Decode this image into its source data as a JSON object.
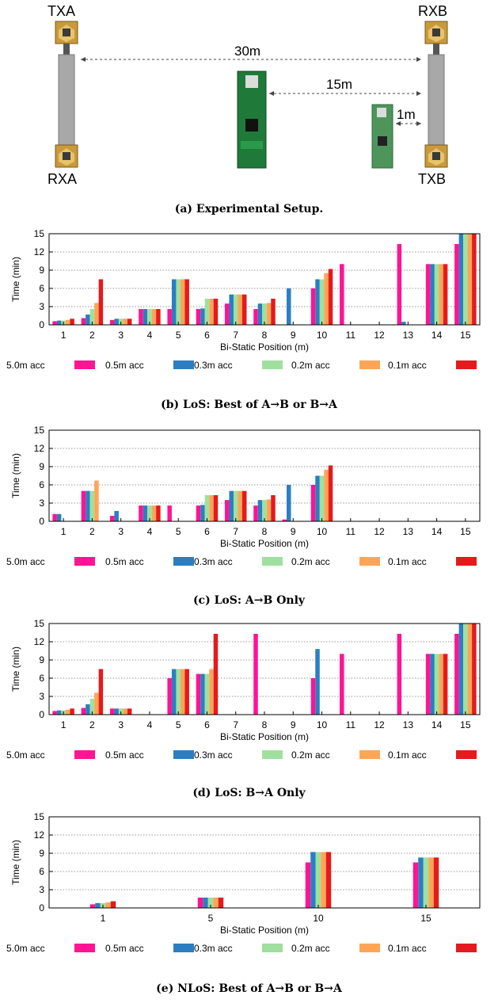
{
  "setup": {
    "labels": {
      "txa": "TXA",
      "rxa": "RXA",
      "rxb": "RXB",
      "txb": "TXB"
    },
    "distances": {
      "d30": "30m",
      "d15": "15m",
      "d1": "1m"
    },
    "caption": "(a) Experimental Setup."
  },
  "legend": {
    "entries": [
      "5.0m acc",
      "0.5m acc",
      "0.3m acc",
      "0.2m acc",
      "0.1m acc"
    ],
    "colors": [
      "#ff1493",
      "#2b7ec1",
      "#9fe09f",
      "#ffa556",
      "#e41a1c"
    ]
  },
  "chart_data": [
    {
      "type": "bar",
      "caption": "(b) LoS: Best of A→B or B→A",
      "categories": [
        "1",
        "2",
        "3",
        "4",
        "5",
        "6",
        "7",
        "8",
        "9",
        "10",
        "11",
        "12",
        "13",
        "14",
        "15"
      ],
      "xlabel": "Bi-Static Position (m)",
      "ylabel": "Time (min)",
      "ylim": [
        0,
        15
      ],
      "yticks": [
        0,
        3,
        6,
        9,
        12,
        15
      ],
      "series": [
        {
          "name": "5.0m acc",
          "values": [
            0.6,
            1.1,
            0.8,
            2.6,
            2.6,
            2.6,
            3.5,
            2.6,
            0,
            6.0,
            10.0,
            0,
            13.3,
            10.0,
            13.3
          ]
        },
        {
          "name": "0.5m acc",
          "values": [
            0.7,
            1.7,
            1.0,
            2.6,
            7.5,
            2.7,
            5.0,
            3.5,
            6.0,
            7.5,
            0,
            0,
            0.5,
            10.0,
            15.0
          ]
        },
        {
          "name": "0.3m acc",
          "values": [
            0.7,
            2.6,
            1.0,
            2.6,
            7.5,
            4.3,
            5.0,
            3.5,
            0,
            7.5,
            0,
            0,
            0,
            10.0,
            15.0
          ]
        },
        {
          "name": "0.2m acc",
          "values": [
            0.8,
            3.6,
            1.0,
            2.6,
            7.5,
            4.3,
            5.0,
            3.6,
            0,
            8.5,
            0,
            0,
            0,
            10.0,
            15.0
          ]
        },
        {
          "name": "0.1m acc",
          "values": [
            1.0,
            7.5,
            1.0,
            2.6,
            7.5,
            4.3,
            5.0,
            4.3,
            0,
            9.2,
            0,
            0,
            0,
            10.0,
            15.0
          ]
        }
      ],
      "grid": true,
      "legend": "bottom"
    },
    {
      "type": "bar",
      "caption": "(c) LoS: A→B Only",
      "categories": [
        "1",
        "2",
        "3",
        "4",
        "5",
        "6",
        "7",
        "8",
        "9",
        "10",
        "11",
        "12",
        "13",
        "14",
        "15"
      ],
      "xlabel": "Bi-Static Position (m)",
      "ylabel": "Time (min)",
      "ylim": [
        0,
        15
      ],
      "yticks": [
        0,
        3,
        6,
        9,
        12,
        15
      ],
      "series": [
        {
          "name": "5.0m acc",
          "values": [
            1.2,
            5.0,
            0.9,
            2.6,
            2.6,
            2.6,
            3.5,
            2.6,
            0.3,
            6.0,
            0,
            0,
            0,
            0,
            0
          ]
        },
        {
          "name": "0.5m acc",
          "values": [
            1.2,
            5.0,
            1.7,
            2.6,
            0,
            2.7,
            5.0,
            3.5,
            6.0,
            7.5,
            0,
            0,
            0,
            0,
            0
          ]
        },
        {
          "name": "0.3m acc",
          "values": [
            0,
            5.0,
            0,
            2.6,
            0,
            4.3,
            5.0,
            3.5,
            0,
            7.5,
            0,
            0,
            0,
            0,
            0
          ]
        },
        {
          "name": "0.2m acc",
          "values": [
            0,
            6.7,
            0,
            2.6,
            0,
            4.3,
            5.0,
            3.6,
            0,
            8.5,
            0,
            0,
            0,
            0,
            0
          ]
        },
        {
          "name": "0.1m acc",
          "values": [
            0,
            0,
            0,
            2.6,
            0,
            4.3,
            5.0,
            4.3,
            0,
            9.2,
            0,
            0,
            0,
            0,
            0
          ]
        }
      ],
      "grid": true,
      "legend": "bottom"
    },
    {
      "type": "bar",
      "caption": "(d) LoS: B→A Only",
      "categories": [
        "1",
        "2",
        "3",
        "4",
        "5",
        "6",
        "7",
        "8",
        "9",
        "10",
        "11",
        "12",
        "13",
        "14",
        "15"
      ],
      "xlabel": "Bi-Static Position (m)",
      "ylabel": "Time (min)",
      "ylim": [
        0,
        15
      ],
      "yticks": [
        0,
        3,
        6,
        9,
        12,
        15
      ],
      "series": [
        {
          "name": "5.0m acc",
          "values": [
            0.6,
            1.1,
            1.0,
            0,
            6.0,
            6.7,
            0,
            13.3,
            0,
            6.0,
            10.0,
            0,
            13.3,
            10.0,
            13.3
          ]
        },
        {
          "name": "0.5m acc",
          "values": [
            0.7,
            1.7,
            1.0,
            0,
            7.5,
            6.7,
            0,
            0,
            0,
            10.8,
            0,
            0,
            0,
            10.0,
            15.0
          ]
        },
        {
          "name": "0.3m acc",
          "values": [
            0.7,
            2.6,
            1.0,
            0,
            7.5,
            6.7,
            0,
            0,
            0,
            0,
            0,
            0,
            0,
            10.0,
            15.0
          ]
        },
        {
          "name": "0.2m acc",
          "values": [
            0.8,
            3.6,
            1.0,
            0,
            7.5,
            7.5,
            0,
            0,
            0,
            0,
            0,
            0,
            0,
            10.0,
            15.0
          ]
        },
        {
          "name": "0.1m acc",
          "values": [
            1.0,
            7.5,
            1.0,
            0,
            7.5,
            13.3,
            0,
            0,
            0,
            0,
            0,
            0,
            0,
            10.0,
            15.0
          ]
        }
      ],
      "grid": true,
      "legend": "bottom"
    },
    {
      "type": "bar",
      "caption": "(e) NLoS: Best of A→B or B→A",
      "categories": [
        "1",
        "5",
        "10",
        "15"
      ],
      "xlabel": "Bi-Static Position (m)",
      "ylabel": "Time (min)",
      "ylim": [
        0,
        15
      ],
      "yticks": [
        0,
        3,
        6,
        9,
        12,
        15
      ],
      "series": [
        {
          "name": "5.0m acc",
          "values": [
            0.6,
            1.7,
            7.5,
            7.5
          ]
        },
        {
          "name": "0.5m acc",
          "values": [
            0.8,
            1.7,
            9.2,
            8.3
          ]
        },
        {
          "name": "0.3m acc",
          "values": [
            0.8,
            1.7,
            9.2,
            8.3
          ]
        },
        {
          "name": "0.2m acc",
          "values": [
            0.9,
            1.7,
            9.2,
            8.3
          ]
        },
        {
          "name": "0.1m acc",
          "values": [
            1.1,
            1.7,
            9.2,
            8.3
          ]
        }
      ],
      "grid": true,
      "legend": "bottom"
    }
  ]
}
